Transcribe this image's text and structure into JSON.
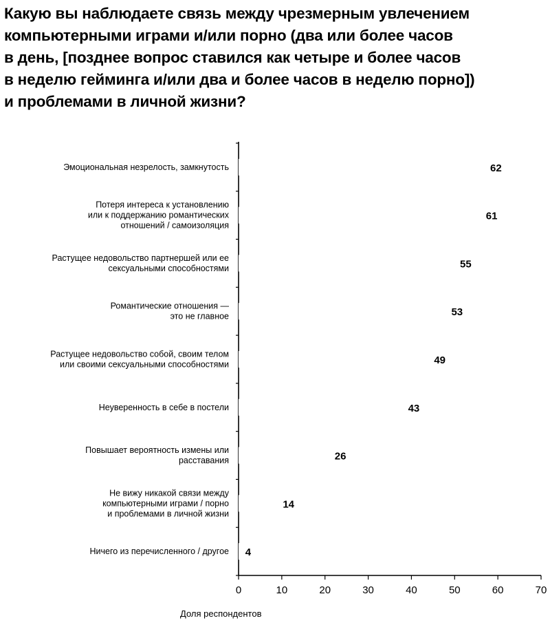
{
  "chart_data": {
    "type": "bar",
    "orientation": "horizontal",
    "title": "Какую вы наблюдаете связь между чрезмерным увлечением компьютерными играми и/или порно (два или более часов в день, [позднее вопрос ставился как четыре и более часов в неделю гейминга и/или два и более часов в неделю порно]) и проблемами в личной жизни?",
    "title_lines": [
      "Какую вы наблюдаете связь между чрезмерным увлечением",
      "компьютерными играми и/или порно (два или более часов",
      "в день, [позднее вопрос ставился как четыре и более часов",
      "в неделю гейминга и/или два и более часов в неделю порно])",
      "и проблемами в личной жизни?"
    ],
    "categories": [
      [
        "Эмоциональная незрелость, замкнутость"
      ],
      [
        "Потеря интереса к установлению",
        "или к поддержанию романтических",
        "отношений / самоизоляция"
      ],
      [
        "Растущее недовольство партнершей или ее",
        "сексуальными способностями"
      ],
      [
        "Романтические отношения —",
        "это не главное"
      ],
      [
        "Растущее недовольство собой, своим телом",
        "или своими сексуальными способностями"
      ],
      [
        "Неуверенность в себе в постели"
      ],
      [
        "Повышает вероятность измены или",
        "расставания"
      ],
      [
        "Не вижу никакой связи между",
        "компьютерными играми / порно",
        "и проблемами в личной жизни"
      ],
      [
        "Ничего из перечисленного / другое"
      ]
    ],
    "values": [
      62,
      61,
      55,
      53,
      49,
      43,
      26,
      14,
      4
    ],
    "xlabel": "Доля респондентов",
    "ylabel": "",
    "xlim": [
      0,
      70
    ],
    "xticks": [
      0,
      10,
      20,
      30,
      40,
      50,
      60,
      70
    ],
    "grid": false,
    "bar_color": "#ffffff",
    "text_color": "#000000"
  }
}
